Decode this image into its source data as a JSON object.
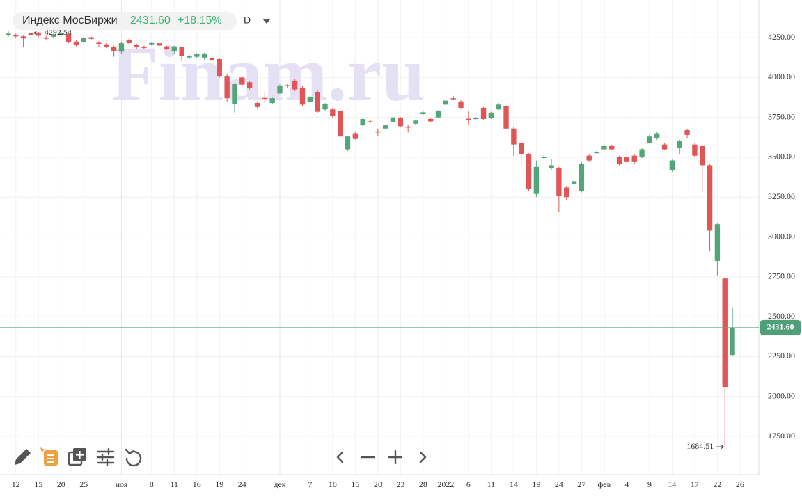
{
  "chart_data": {
    "type": "candlestick",
    "title": "Индекс МосБиржи",
    "change": "+18.15%",
    "interval": "D",
    "watermark": "Finam.ru",
    "last_price": {
      "value": 2431.6,
      "label": "2431.60"
    },
    "high_marker": {
      "value": 4292.54,
      "label": "4292.54"
    },
    "low_marker": {
      "value": 1684.51,
      "label": "1684.51"
    },
    "up_color": "#53a57a",
    "down_color": "#e05656",
    "ylim": [
      1519,
      4486
    ],
    "yticks": [
      {
        "value": 1750,
        "label": "1750.00"
      },
      {
        "value": 2000,
        "label": "2000.00"
      },
      {
        "value": 2250,
        "label": "2250.00"
      },
      {
        "value": 2500,
        "label": "2500.00"
      },
      {
        "value": 2750,
        "label": "2750.00"
      },
      {
        "value": 3000,
        "label": "3000.00"
      },
      {
        "value": 3250,
        "label": "3250.00"
      },
      {
        "value": 3500,
        "label": "3500.00"
      },
      {
        "value": 3750,
        "label": "3750.00"
      },
      {
        "value": 4000,
        "label": "4000.00"
      },
      {
        "value": 4250,
        "label": "4250.00"
      }
    ],
    "xlim": [
      -1.1,
      99.5
    ],
    "xticks": [
      {
        "value": 1,
        "label": "12"
      },
      {
        "value": 4,
        "label": "15"
      },
      {
        "value": 7,
        "label": "20"
      },
      {
        "value": 10,
        "label": "25"
      },
      {
        "value": 15,
        "label": "ноя"
      },
      {
        "value": 19,
        "label": "8"
      },
      {
        "value": 22,
        "label": "11"
      },
      {
        "value": 25,
        "label": "16"
      },
      {
        "value": 28,
        "label": "19"
      },
      {
        "value": 31,
        "label": "24"
      },
      {
        "value": 36,
        "label": "дек"
      },
      {
        "value": 40,
        "label": "7"
      },
      {
        "value": 43,
        "label": "10"
      },
      {
        "value": 46,
        "label": "15"
      },
      {
        "value": 49,
        "label": "20"
      },
      {
        "value": 52,
        "label": "23"
      },
      {
        "value": 55,
        "label": "28"
      },
      {
        "value": 58,
        "label": "2022"
      },
      {
        "value": 61,
        "label": "6"
      },
      {
        "value": 64,
        "label": "11"
      },
      {
        "value": 67,
        "label": "14"
      },
      {
        "value": 70,
        "label": "19"
      },
      {
        "value": 73,
        "label": "24"
      },
      {
        "value": 76,
        "label": "27"
      },
      {
        "value": 79,
        "label": "фев"
      },
      {
        "value": 82,
        "label": "4"
      },
      {
        "value": 85,
        "label": "9"
      },
      {
        "value": 88,
        "label": "14"
      },
      {
        "value": 91,
        "label": "17"
      },
      {
        "value": 94,
        "label": "22"
      },
      {
        "value": 97,
        "label": "26"
      }
    ],
    "open": [
      4265,
      4268,
      4258,
      4278,
      4276,
      4250,
      4255,
      4265,
      4272,
      4225,
      4222,
      4252,
      4218,
      4208,
      4192,
      4162,
      4238,
      4205,
      4192,
      4208,
      4215,
      4195,
      4165,
      4190,
      4125,
      4130,
      4125,
      4122,
      4115,
      4010,
      3835,
      4000,
      3970,
      3840,
      3872,
      3840,
      3900,
      3952,
      3980,
      3935,
      3845,
      3910,
      3800,
      3800,
      3790,
      3550,
      3650,
      3700,
      3725,
      3662,
      3680,
      3720,
      3745,
      3692,
      3710,
      3770,
      3740,
      3750,
      3830,
      3870,
      3850,
      3742,
      3745,
      3810,
      3745,
      3800,
      3820,
      3680,
      3590,
      3520,
      3270,
      3500,
      3430,
      3430,
      3310,
      3330,
      3290,
      3510,
      3530,
      3550,
      3570,
      3500,
      3500,
      3510,
      3500,
      3590,
      3620,
      3580,
      3420,
      3560,
      3670,
      3580,
      3570,
      3450,
      2850,
      2740,
      2260
    ],
    "high": [
      4292.54,
      4275,
      4265,
      4290,
      4285,
      4262,
      4275,
      4285,
      4278,
      4232,
      4258,
      4258,
      4228,
      4215,
      4200,
      4225,
      4245,
      4212,
      4200,
      4222,
      4222,
      4200,
      4200,
      4195,
      4142,
      4152,
      4155,
      4130,
      4122,
      4020,
      3965,
      4010,
      3980,
      3850,
      3910,
      3878,
      3958,
      3962,
      3990,
      3945,
      3890,
      3918,
      3840,
      3810,
      3798,
      3635,
      3660,
      3745,
      3735,
      3680,
      3705,
      3755,
      3752,
      3702,
      3735,
      3788,
      3748,
      3795,
      3860,
      3885,
      3858,
      3790,
      3752,
      3815,
      3785,
      3840,
      3825,
      3690,
      3600,
      3525,
      3480,
      3515,
      3490,
      3440,
      3320,
      3360,
      3470,
      3520,
      3540,
      3580,
      3575,
      3510,
      3550,
      3520,
      3560,
      3640,
      3660,
      3590,
      3485,
      3610,
      3680,
      3590,
      3580,
      3460,
      3090,
      2745,
      2560
    ],
    "low": [
      4255,
      4250,
      4190,
      4260,
      4255,
      4235,
      4245,
      4258,
      4215,
      4195,
      4215,
      4235,
      4190,
      4185,
      4130,
      4150,
      4205,
      4180,
      4180,
      4200,
      4195,
      4172,
      4150,
      4100,
      4115,
      4120,
      4110,
      4095,
      4000,
      3850,
      3780,
      3945,
      3925,
      3810,
      3840,
      3832,
      3895,
      3935,
      3915,
      3820,
      3835,
      3780,
      3790,
      3750,
      3625,
      3540,
      3610,
      3695,
      3715,
      3630,
      3675,
      3700,
      3690,
      3655,
      3705,
      3765,
      3720,
      3745,
      3825,
      3860,
      3805,
      3700,
      3738,
      3735,
      3740,
      3795,
      3675,
      3510,
      3450,
      3290,
      3250,
      3490,
      3420,
      3160,
      3230,
      3300,
      3280,
      3470,
      3520,
      3545,
      3545,
      3450,
      3460,
      3460,
      3495,
      3585,
      3610,
      3545,
      3410,
      3520,
      3620,
      3500,
      3280,
      2910,
      2760,
      1684.51,
      2255
    ],
    "close": [
      4275,
      4258,
      4245,
      4266,
      4262,
      4248,
      4270,
      4280,
      4222,
      4205,
      4250,
      4242,
      4214,
      4192,
      4165,
      4215,
      4215,
      4190,
      4190,
      4216,
      4200,
      4180,
      4195,
      4135,
      4137,
      4148,
      4150,
      4110,
      4010,
      3870,
      3960,
      3955,
      3935,
      3815,
      3868,
      3870,
      3950,
      3948,
      3925,
      3830,
      3880,
      3785,
      3835,
      3760,
      3630,
      3630,
      3615,
      3740,
      3723,
      3660,
      3700,
      3750,
      3695,
      3690,
      3730,
      3782,
      3725,
      3790,
      3855,
      3868,
      3810,
      3740,
      3746,
      3740,
      3780,
      3830,
      3680,
      3580,
      3520,
      3300,
      3440,
      3502,
      3450,
      3260,
      3250,
      3350,
      3460,
      3480,
      3532,
      3570,
      3550,
      3460,
      3470,
      3470,
      3550,
      3630,
      3650,
      3550,
      3480,
      3600,
      3640,
      3510,
      3450,
      3040,
      3080,
      2060,
      2431.6
    ]
  }
}
